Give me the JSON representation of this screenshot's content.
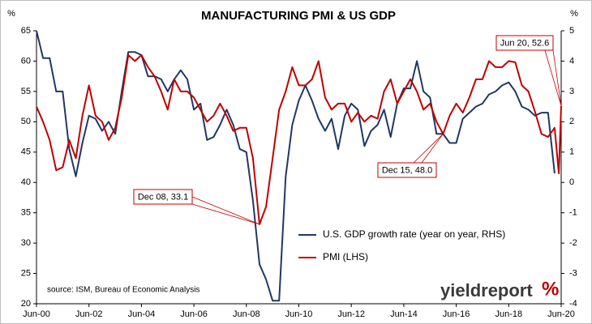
{
  "chart_data": {
    "type": "line",
    "title": "MANUFACTURING PMI & US GDP",
    "y_unit": "%",
    "y2_unit": "%",
    "source": "source: ISM, Bureau of Economic Analysis",
    "logo": {
      "text": "yieldreport",
      "mark": "%"
    },
    "xlim": [
      2000.42,
      2020.42
    ],
    "xticks": [
      {
        "value": 2000.42,
        "label": "Jun-00"
      },
      {
        "value": 2002.42,
        "label": "Jun-02"
      },
      {
        "value": 2004.42,
        "label": "Jun-04"
      },
      {
        "value": 2006.42,
        "label": "Jun-06"
      },
      {
        "value": 2008.42,
        "label": "Jun-08"
      },
      {
        "value": 2010.42,
        "label": "Jun-10"
      },
      {
        "value": 2012.42,
        "label": "Jun-12"
      },
      {
        "value": 2014.42,
        "label": "Jun-14"
      },
      {
        "value": 2016.42,
        "label": "Jun-16"
      },
      {
        "value": 2018.42,
        "label": "Jun-18"
      },
      {
        "value": 2020.42,
        "label": "Jun-20"
      }
    ],
    "ylim": [
      20,
      65
    ],
    "yticks": [
      20,
      25,
      30,
      35,
      40,
      45,
      50,
      55,
      60,
      65
    ],
    "y2lim": [
      -4,
      5
    ],
    "y2ticks": [
      -4,
      -3,
      -2,
      -1,
      0,
      1,
      2,
      3,
      4,
      5
    ],
    "legend": "bottom-right",
    "series": [
      {
        "name": "U.S. GDP growth rate (year on year, RHS)",
        "color": "#1f3864",
        "axis": "y2",
        "x": [
          2000.42,
          2000.67,
          2000.92,
          2001.17,
          2001.42,
          2001.67,
          2001.92,
          2002.17,
          2002.42,
          2002.67,
          2002.92,
          2003.17,
          2003.42,
          2003.67,
          2003.92,
          2004.17,
          2004.42,
          2004.67,
          2004.92,
          2005.17,
          2005.42,
          2005.67,
          2005.92,
          2006.17,
          2006.42,
          2006.67,
          2006.92,
          2007.17,
          2007.42,
          2007.67,
          2007.92,
          2008.17,
          2008.42,
          2008.67,
          2008.92,
          2009.17,
          2009.42,
          2009.67,
          2009.92,
          2010.17,
          2010.42,
          2010.67,
          2010.92,
          2011.17,
          2011.42,
          2011.67,
          2011.92,
          2012.17,
          2012.42,
          2012.67,
          2012.92,
          2013.17,
          2013.42,
          2013.67,
          2013.92,
          2014.17,
          2014.42,
          2014.67,
          2014.92,
          2015.17,
          2015.42,
          2015.67,
          2015.92,
          2016.17,
          2016.42,
          2016.67,
          2016.92,
          2017.17,
          2017.42,
          2017.67,
          2017.92,
          2018.17,
          2018.42,
          2018.67,
          2018.92,
          2019.17,
          2019.42,
          2019.67,
          2019.92,
          2020.17
        ],
        "values": [
          5.0,
          4.1,
          4.1,
          3.0,
          3.0,
          1.1,
          0.2,
          1.3,
          2.2,
          2.1,
          1.7,
          2.0,
          1.6,
          3.0,
          4.3,
          4.3,
          4.2,
          3.5,
          3.5,
          3.4,
          3.0,
          3.4,
          3.7,
          3.4,
          2.4,
          2.6,
          1.4,
          1.5,
          1.9,
          2.4,
          1.9,
          1.1,
          1.0,
          -0.6,
          -2.7,
          -3.2,
          -3.9,
          -3.9,
          0.2,
          1.9,
          2.7,
          3.2,
          2.7,
          2.1,
          1.7,
          2.1,
          1.1,
          2.2,
          2.6,
          2.4,
          1.2,
          1.7,
          1.9,
          2.4,
          1.5,
          2.6,
          3.1,
          3.1,
          4.0,
          3.0,
          2.8,
          1.6,
          1.6,
          1.3,
          1.3,
          2.1,
          2.3,
          2.5,
          2.6,
          2.9,
          3.0,
          3.2,
          3.3,
          3.0,
          2.5,
          2.4,
          2.2,
          2.3,
          2.3,
          0.3
        ]
      },
      {
        "name": "PMI (LHS)",
        "color": "#c00000",
        "x": [
          2000.42,
          2000.67,
          2000.92,
          2001.17,
          2001.42,
          2001.67,
          2001.92,
          2002.17,
          2002.42,
          2002.67,
          2002.92,
          2003.17,
          2003.42,
          2003.67,
          2003.92,
          2004.17,
          2004.42,
          2004.67,
          2004.92,
          2005.17,
          2005.42,
          2005.67,
          2005.92,
          2006.17,
          2006.42,
          2006.67,
          2006.92,
          2007.17,
          2007.42,
          2007.67,
          2007.92,
          2008.17,
          2008.42,
          2008.67,
          2008.92,
          2009.17,
          2009.42,
          2009.67,
          2009.92,
          2010.17,
          2010.42,
          2010.67,
          2010.92,
          2011.17,
          2011.42,
          2011.67,
          2011.92,
          2012.17,
          2012.42,
          2012.67,
          2012.92,
          2013.17,
          2013.42,
          2013.67,
          2013.92,
          2014.17,
          2014.42,
          2014.67,
          2014.92,
          2015.17,
          2015.42,
          2015.67,
          2015.92,
          2016.17,
          2016.42,
          2016.67,
          2016.92,
          2017.17,
          2017.42,
          2017.67,
          2017.92,
          2018.17,
          2018.42,
          2018.67,
          2018.92,
          2019.17,
          2019.42,
          2019.67,
          2019.92,
          2020.17,
          2020.33,
          2020.42
        ],
        "values": [
          52.5,
          50,
          47,
          42,
          42.5,
          47,
          44,
          51,
          56,
          51,
          50,
          47,
          49,
          54,
          61,
          60,
          61,
          59,
          57.5,
          55,
          52,
          57,
          55,
          55,
          54,
          52,
          50,
          51,
          53,
          51,
          48.5,
          49,
          49,
          44,
          33.1,
          36,
          44,
          52,
          55,
          59,
          56,
          56,
          57,
          60,
          54,
          52,
          53,
          53,
          50,
          51.5,
          50,
          51,
          50.5,
          55,
          57,
          53,
          55,
          57,
          55,
          52,
          53,
          50,
          48.0,
          51,
          53,
          51.5,
          54,
          57,
          57,
          60,
          59,
          59,
          60,
          59.8,
          56,
          55,
          51.7,
          48,
          47.5,
          49,
          41.5,
          52.6
        ]
      }
    ],
    "annotations": [
      "Dec 08, 33.1",
      "Dec 15, 48.0",
      "Jun 20, 52.6"
    ]
  }
}
